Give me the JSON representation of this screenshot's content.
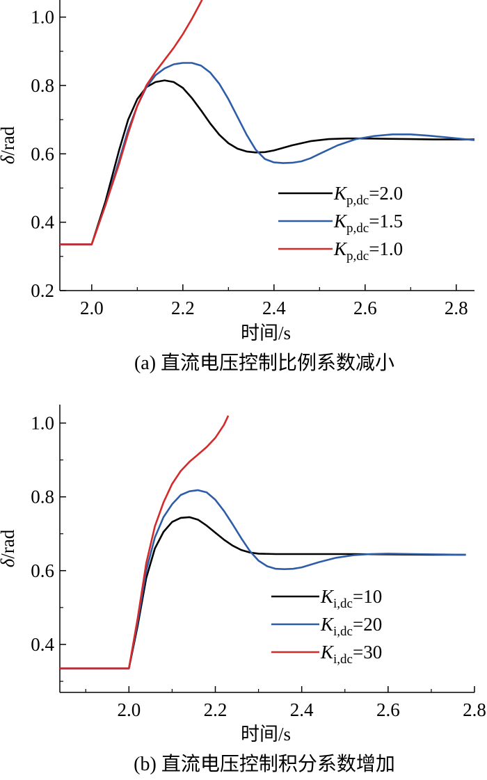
{
  "chart_data": [
    {
      "type": "line",
      "caption": "(a) 直流电压控制比例系数减小",
      "xlabel": "时间/s",
      "ylabel": "δ/rad",
      "xlim": [
        1.93,
        2.84
      ],
      "ylim": [
        0.2,
        1.05
      ],
      "xticks": [
        2.0,
        2.2,
        2.4,
        2.6,
        2.8
      ],
      "xtick_labels": [
        "2.0",
        "2.2",
        "2.4",
        "2.6",
        "2.8"
      ],
      "yticks": [
        0.2,
        0.4,
        0.6,
        0.8,
        1.0
      ],
      "ytick_labels": [
        "0.2",
        "0.4",
        "0.6",
        "0.8",
        "1.0"
      ],
      "legend_position": "center-right",
      "series": [
        {
          "name": "K_p,dc = 2.0",
          "legend": {
            "symbol": "K",
            "sub": "p,dc",
            "rest": "=2.0"
          },
          "color": "#000000",
          "points": [
            [
              1.93,
              0.335
            ],
            [
              2.0,
              0.335
            ],
            [
              2.03,
              0.46
            ],
            [
              2.06,
              0.61
            ],
            [
              2.08,
              0.7
            ],
            [
              2.1,
              0.76
            ],
            [
              2.12,
              0.795
            ],
            [
              2.14,
              0.81
            ],
            [
              2.16,
              0.815
            ],
            [
              2.18,
              0.81
            ],
            [
              2.2,
              0.793
            ],
            [
              2.22,
              0.763
            ],
            [
              2.24,
              0.727
            ],
            [
              2.26,
              0.689
            ],
            [
              2.28,
              0.656
            ],
            [
              2.3,
              0.631
            ],
            [
              2.32,
              0.615
            ],
            [
              2.34,
              0.607
            ],
            [
              2.36,
              0.604
            ],
            [
              2.38,
              0.605
            ],
            [
              2.4,
              0.61
            ],
            [
              2.44,
              0.625
            ],
            [
              2.48,
              0.637
            ],
            [
              2.52,
              0.643
            ],
            [
              2.56,
              0.645
            ],
            [
              2.6,
              0.645
            ],
            [
              2.65,
              0.644
            ],
            [
              2.7,
              0.643
            ],
            [
              2.75,
              0.642
            ],
            [
              2.84,
              0.642
            ]
          ]
        },
        {
          "name": "K_p,dc = 1.5",
          "legend": {
            "symbol": "K",
            "sub": "p,dc",
            "rest": "=1.5"
          },
          "color": "#2E5DA8",
          "points": [
            [
              1.93,
              0.335
            ],
            [
              2.0,
              0.335
            ],
            [
              2.03,
              0.45
            ],
            [
              2.06,
              0.58
            ],
            [
              2.08,
              0.67
            ],
            [
              2.1,
              0.74
            ],
            [
              2.12,
              0.795
            ],
            [
              2.14,
              0.83
            ],
            [
              2.16,
              0.85
            ],
            [
              2.18,
              0.862
            ],
            [
              2.2,
              0.866
            ],
            [
              2.22,
              0.866
            ],
            [
              2.24,
              0.858
            ],
            [
              2.26,
              0.838
            ],
            [
              2.28,
              0.805
            ],
            [
              2.3,
              0.76
            ],
            [
              2.32,
              0.708
            ],
            [
              2.34,
              0.656
            ],
            [
              2.36,
              0.612
            ],
            [
              2.38,
              0.585
            ],
            [
              2.4,
              0.575
            ],
            [
              2.42,
              0.573
            ],
            [
              2.44,
              0.574
            ],
            [
              2.46,
              0.578
            ],
            [
              2.48,
              0.587
            ],
            [
              2.5,
              0.6
            ],
            [
              2.54,
              0.625
            ],
            [
              2.58,
              0.643
            ],
            [
              2.62,
              0.652
            ],
            [
              2.66,
              0.657
            ],
            [
              2.7,
              0.657
            ],
            [
              2.74,
              0.653
            ],
            [
              2.78,
              0.648
            ],
            [
              2.84,
              0.64
            ]
          ]
        },
        {
          "name": "K_p,dc = 1.0",
          "legend": {
            "symbol": "K",
            "sub": "p,dc",
            "rest": "=1.0"
          },
          "color": "#D42A2A",
          "points": [
            [
              1.93,
              0.335
            ],
            [
              2.0,
              0.335
            ],
            [
              2.03,
              0.45
            ],
            [
              2.06,
              0.57
            ],
            [
              2.08,
              0.66
            ],
            [
              2.1,
              0.74
            ],
            [
              2.12,
              0.8
            ],
            [
              2.14,
              0.84
            ],
            [
              2.16,
              0.875
            ],
            [
              2.18,
              0.91
            ],
            [
              2.2,
              0.95
            ],
            [
              2.22,
              0.995
            ],
            [
              2.24,
              1.045
            ],
            [
              2.245,
              1.06
            ]
          ]
        }
      ]
    },
    {
      "type": "line",
      "caption": "(b) 直流电压控制积分系数增加",
      "xlabel": "时间/s",
      "ylabel": "δ/rad",
      "xlim": [
        1.84,
        2.8
      ],
      "ylim": [
        0.27,
        1.05
      ],
      "xticks": [
        2.0,
        2.2,
        2.4,
        2.6,
        2.8
      ],
      "xtick_labels": [
        "2.0",
        "2.2",
        "2.4",
        "2.6",
        "2.8"
      ],
      "yticks": [
        0.4,
        0.6,
        0.8,
        1.0
      ],
      "ytick_labels": [
        "0.4",
        "0.6",
        "0.8",
        "1.0"
      ],
      "legend_position": "center-right",
      "series": [
        {
          "name": "K_i,dc = 10",
          "legend": {
            "symbol": "K",
            "sub": "i,dc",
            "rest": "=10"
          },
          "color": "#000000",
          "points": [
            [
              1.84,
              0.335
            ],
            [
              2.0,
              0.335
            ],
            [
              2.02,
              0.45
            ],
            [
              2.04,
              0.58
            ],
            [
              2.06,
              0.66
            ],
            [
              2.08,
              0.705
            ],
            [
              2.1,
              0.732
            ],
            [
              2.12,
              0.743
            ],
            [
              2.14,
              0.745
            ],
            [
              2.16,
              0.738
            ],
            [
              2.18,
              0.722
            ],
            [
              2.2,
              0.703
            ],
            [
              2.22,
              0.684
            ],
            [
              2.24,
              0.668
            ],
            [
              2.26,
              0.656
            ],
            [
              2.28,
              0.649
            ],
            [
              2.3,
              0.646
            ],
            [
              2.34,
              0.645
            ],
            [
              2.4,
              0.645
            ],
            [
              2.5,
              0.645
            ],
            [
              2.6,
              0.644
            ],
            [
              2.7,
              0.643
            ],
            [
              2.78,
              0.643
            ]
          ]
        },
        {
          "name": "K_i,dc = 20",
          "legend": {
            "symbol": "K",
            "sub": "i,dc",
            "rest": "=20"
          },
          "color": "#2E5DA8",
          "points": [
            [
              1.84,
              0.335
            ],
            [
              2.0,
              0.335
            ],
            [
              2.02,
              0.46
            ],
            [
              2.04,
              0.6
            ],
            [
              2.06,
              0.69
            ],
            [
              2.08,
              0.745
            ],
            [
              2.1,
              0.78
            ],
            [
              2.12,
              0.805
            ],
            [
              2.14,
              0.815
            ],
            [
              2.16,
              0.818
            ],
            [
              2.18,
              0.812
            ],
            [
              2.2,
              0.792
            ],
            [
              2.22,
              0.762
            ],
            [
              2.24,
              0.726
            ],
            [
              2.26,
              0.688
            ],
            [
              2.28,
              0.653
            ],
            [
              2.3,
              0.627
            ],
            [
              2.32,
              0.612
            ],
            [
              2.34,
              0.605
            ],
            [
              2.36,
              0.604
            ],
            [
              2.38,
              0.605
            ],
            [
              2.4,
              0.609
            ],
            [
              2.44,
              0.623
            ],
            [
              2.48,
              0.635
            ],
            [
              2.52,
              0.642
            ],
            [
              2.56,
              0.645
            ],
            [
              2.6,
              0.646
            ],
            [
              2.66,
              0.645
            ],
            [
              2.72,
              0.644
            ],
            [
              2.78,
              0.643
            ]
          ]
        },
        {
          "name": "K_i,dc = 30",
          "legend": {
            "symbol": "K",
            "sub": "i,dc",
            "rest": "=30"
          },
          "color": "#D42A2A",
          "points": [
            [
              1.84,
              0.335
            ],
            [
              2.0,
              0.335
            ],
            [
              2.02,
              0.47
            ],
            [
              2.04,
              0.62
            ],
            [
              2.06,
              0.72
            ],
            [
              2.08,
              0.785
            ],
            [
              2.1,
              0.835
            ],
            [
              2.12,
              0.87
            ],
            [
              2.14,
              0.895
            ],
            [
              2.16,
              0.915
            ],
            [
              2.18,
              0.935
            ],
            [
              2.2,
              0.96
            ],
            [
              2.22,
              0.995
            ],
            [
              2.23,
              1.02
            ]
          ]
        }
      ]
    }
  ]
}
